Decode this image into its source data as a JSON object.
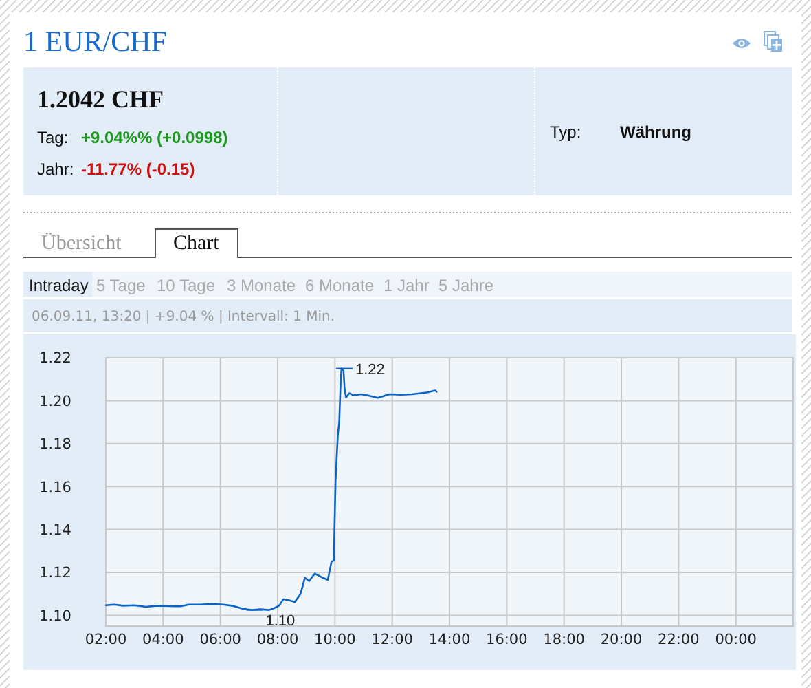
{
  "chart_data": {
    "type": "line",
    "title": "1 EUR/CHF",
    "subtitle": "06.09.11, 13:20 | +9.04 % | Intervall: 1 Min.",
    "annotations": [
      "1.2042 CHF",
      "Tag:",
      "+9.04%% (+0.0998)",
      "Jahr:",
      "-11.77% (-0.15)",
      "Typ:",
      "Währung",
      "Übersicht",
      "Chart",
      "Intraday",
      "5 Tage",
      "10 Tage",
      "3 Monate",
      "6 Monate",
      "1 Jahr",
      "5 Jahre",
      {
        "text": "1.22",
        "x": 10.23,
        "y": 1.215
      },
      {
        "text": "1.10",
        "x": 7.1,
        "y": 1.1025
      }
    ],
    "x": [
      2.0,
      2.3,
      2.6,
      3.0,
      3.4,
      3.8,
      4.2,
      4.6,
      4.9,
      5.3,
      5.7,
      6.1,
      6.4,
      6.8,
      7.1,
      7.4,
      7.7,
      7.9,
      8.05,
      8.2,
      8.4,
      8.6,
      8.8,
      8.95,
      9.1,
      9.3,
      9.5,
      9.75,
      9.88,
      9.96,
      10.02,
      10.1,
      10.15,
      10.2,
      10.23,
      10.3,
      10.34,
      10.39,
      10.5,
      10.65,
      10.9,
      11.1,
      11.5,
      11.9,
      12.3,
      12.7,
      13.2,
      13.5,
      13.55
    ],
    "values": [
      1.1047,
      1.105,
      1.1045,
      1.1047,
      1.104,
      1.1045,
      1.1043,
      1.1042,
      1.105,
      1.105,
      1.1053,
      1.105,
      1.1045,
      1.103,
      1.1025,
      1.1028,
      1.1025,
      1.1035,
      1.1045,
      1.1075,
      1.107,
      1.1062,
      1.11,
      1.1175,
      1.116,
      1.1195,
      1.118,
      1.1165,
      1.125,
      1.1255,
      1.162,
      1.184,
      1.19,
      1.209,
      1.215,
      1.214,
      1.205,
      1.2015,
      1.2035,
      1.2025,
      1.203,
      1.2026,
      1.2013,
      1.203,
      1.2028,
      1.203,
      1.2038,
      1.2048,
      1.2042
    ],
    "color": "#0a64c8",
    "xlim": [
      2,
      26
    ],
    "ylim": [
      1.095,
      1.22
    ],
    "xticks": [
      {
        "value": 2,
        "label": "02:00"
      },
      {
        "value": 4,
        "label": "04:00"
      },
      {
        "value": 6,
        "label": "06:00"
      },
      {
        "value": 8,
        "label": "08:00"
      },
      {
        "value": 10,
        "label": "10:00"
      },
      {
        "value": 12,
        "label": "12:00"
      },
      {
        "value": 14,
        "label": "14:00"
      },
      {
        "value": 16,
        "label": "16:00"
      },
      {
        "value": 18,
        "label": "18:00"
      },
      {
        "value": 20,
        "label": "20:00"
      },
      {
        "value": 22,
        "label": "22:00"
      },
      {
        "value": 24,
        "label": "00:00"
      }
    ],
    "yticks": [
      {
        "value": 1.1,
        "label": "1.10"
      },
      1.12,
      1.14,
      1.16,
      1.18,
      {
        "value": 1.2,
        "label": "1.20"
      },
      1.22
    ],
    "grid": true
  }
}
